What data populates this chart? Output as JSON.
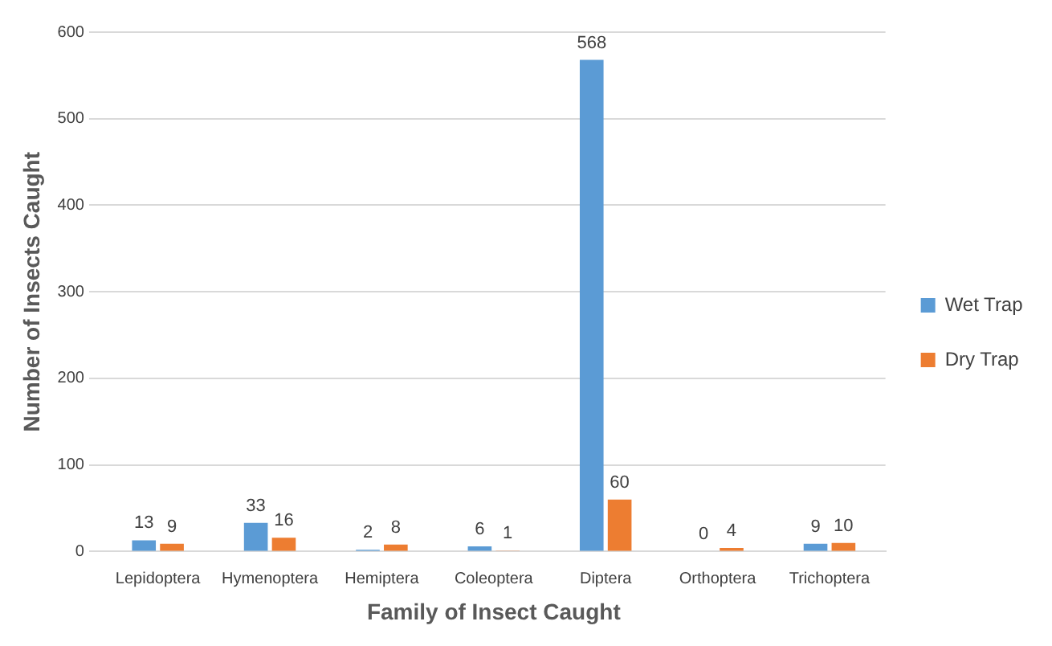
{
  "chart_data": {
    "type": "bar",
    "xlabel": "Family of Insect Caught",
    "ylabel": "Number of Insects Caught",
    "categories": [
      "Lepidoptera",
      "Hymenoptera",
      "Hemiptera",
      "Coleoptera",
      "Diptera",
      "Orthoptera",
      "Trichoptera"
    ],
    "series": [
      {
        "name": "Wet Trap",
        "color": "#5b9bd5",
        "values": [
          13,
          33,
          2,
          6,
          568,
          0,
          9
        ]
      },
      {
        "name": "Dry Trap",
        "color": "#ed7d31",
        "values": [
          9,
          16,
          8,
          1,
          60,
          4,
          10
        ]
      }
    ],
    "ylim": [
      0,
      600
    ],
    "yticks": [
      0,
      100,
      200,
      300,
      400,
      500,
      600
    ],
    "grid": "y",
    "legend": "right",
    "data_labels": true
  }
}
